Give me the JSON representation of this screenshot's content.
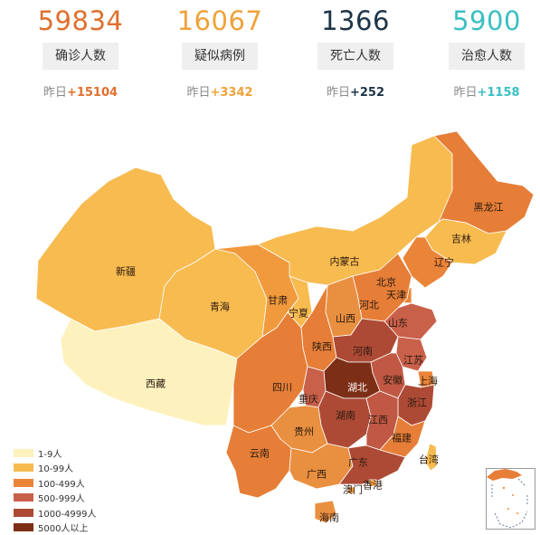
{
  "stats": [
    {
      "value": "59834",
      "label": "确诊人数",
      "yesterday_label": "昨日",
      "yesterday_delta": "+15104",
      "color": "#e06f2d"
    },
    {
      "value": "16067",
      "label": "疑似病例",
      "yesterday_label": "昨日",
      "yesterday_delta": "+3342",
      "color": "#f0a23a"
    },
    {
      "value": "1366",
      "label": "死亡人数",
      "yesterday_label": "昨日",
      "yesterday_delta": "+252",
      "color": "#1d3447"
    },
    {
      "value": "5900",
      "label": "治愈人数",
      "yesterday_label": "昨日",
      "yesterday_delta": "+1158",
      "color": "#3bbfc2"
    }
  ],
  "map": {
    "provinces": [
      {
        "name": "新疆",
        "color": "#f7bb50"
      },
      {
        "name": "西藏",
        "color": "#fdf1bd"
      },
      {
        "name": "青海",
        "color": "#f7bb50"
      },
      {
        "name": "甘肃",
        "color": "#f19a3d"
      },
      {
        "name": "宁夏",
        "color": "#f7bb50"
      },
      {
        "name": "内蒙古",
        "color": "#f7bb50"
      },
      {
        "name": "黑龙江",
        "color": "#e67e37"
      },
      {
        "name": "吉林",
        "color": "#f7bb50"
      },
      {
        "name": "辽宁",
        "color": "#ea8438"
      },
      {
        "name": "北京",
        "color": "#e1763c"
      },
      {
        "name": "天津",
        "color": "#ea8438"
      },
      {
        "name": "河北",
        "color": "#e67e37"
      },
      {
        "name": "山西",
        "color": "#e98f40"
      },
      {
        "name": "山东",
        "color": "#c9604a"
      },
      {
        "name": "陕西",
        "color": "#e67e37"
      },
      {
        "name": "河南",
        "color": "#ad4a35"
      },
      {
        "name": "江苏",
        "color": "#c9604a"
      },
      {
        "name": "安徽",
        "color": "#c05843"
      },
      {
        "name": "上海",
        "color": "#ea8438"
      },
      {
        "name": "湖北",
        "color": "#7d2e16"
      },
      {
        "name": "浙江",
        "color": "#ad4a35"
      },
      {
        "name": "四川",
        "color": "#e67e37"
      },
      {
        "name": "重庆",
        "color": "#c9604a"
      },
      {
        "name": "湖南",
        "color": "#ad4a35"
      },
      {
        "name": "江西",
        "color": "#c05843"
      },
      {
        "name": "福建",
        "color": "#e67e37"
      },
      {
        "name": "贵州",
        "color": "#e98f40"
      },
      {
        "name": "云南",
        "color": "#e67e37"
      },
      {
        "name": "广西",
        "color": "#e98f40"
      },
      {
        "name": "广东",
        "color": "#ad4a35"
      },
      {
        "name": "澳门",
        "color": "#f19a3d"
      },
      {
        "name": "香港",
        "color": "#f19a3d"
      },
      {
        "name": "台湾",
        "color": "#f7bb50"
      },
      {
        "name": "海南",
        "color": "#e98f40"
      }
    ]
  },
  "legend": [
    {
      "label": "1-9人",
      "color": "#fdf1bd"
    },
    {
      "label": "10-99人",
      "color": "#f7bb50"
    },
    {
      "label": "100-499人",
      "color": "#ea8438"
    },
    {
      "label": "500-999人",
      "color": "#c9604a"
    },
    {
      "label": "1000-4999人",
      "color": "#ad4a35"
    },
    {
      "label": "5000人以上",
      "color": "#7d2e16"
    }
  ]
}
